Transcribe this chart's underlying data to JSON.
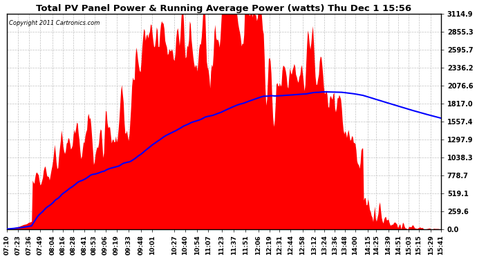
{
  "title": "Total PV Panel Power & Running Average Power (watts) Thu Dec 1 15:56",
  "copyright": "Copyright 2011 Cartronics.com",
  "background_color": "#ffffff",
  "plot_bg_color": "#ffffff",
  "bar_color": "#ff0000",
  "line_color": "#0000ff",
  "grid_color": "#c0c0c0",
  "yticks": [
    0.0,
    259.6,
    519.1,
    778.7,
    1038.3,
    1297.9,
    1557.4,
    1817.0,
    2076.6,
    2336.2,
    2595.7,
    2855.3,
    3114.9
  ],
  "ymax": 3114.9,
  "xtick_labels": [
    "07:10",
    "07:23",
    "07:36",
    "07:49",
    "08:04",
    "08:16",
    "08:28",
    "08:41",
    "08:53",
    "09:06",
    "09:19",
    "09:33",
    "09:48",
    "10:01",
    "10:27",
    "10:40",
    "10:54",
    "11:07",
    "11:23",
    "11:37",
    "11:51",
    "12:06",
    "12:19",
    "12:31",
    "12:44",
    "12:58",
    "13:12",
    "13:24",
    "13:36",
    "13:48",
    "14:00",
    "14:15",
    "14:25",
    "14:39",
    "14:51",
    "15:03",
    "15:15",
    "15:29",
    "15:41"
  ]
}
